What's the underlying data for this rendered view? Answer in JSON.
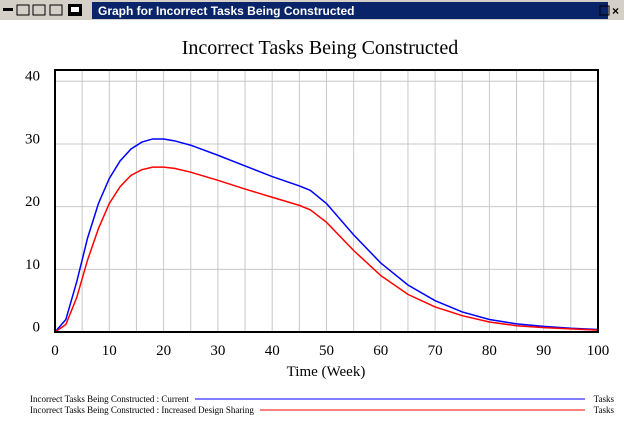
{
  "window_title": "Graph for Incorrect Tasks Being Constructed",
  "chart_data": {
    "type": "line",
    "title": "Incorrect Tasks Being Constructed",
    "xlabel": "Time (Week)",
    "x": [
      0,
      2,
      4,
      6,
      8,
      10,
      12,
      14,
      16,
      18,
      20,
      22,
      25,
      30,
      35,
      40,
      45,
      47,
      50,
      55,
      60,
      65,
      70,
      75,
      80,
      85,
      90,
      95,
      100
    ],
    "series": [
      {
        "name": "Incorrect Tasks Being Constructed : Current",
        "unit": "Tasks",
        "color": "#0000ff",
        "values": [
          0,
          2,
          8,
          15,
          20.5,
          24.5,
          27.3,
          29.2,
          30.3,
          30.8,
          30.8,
          30.5,
          29.8,
          28.2,
          26.5,
          24.8,
          23.3,
          22.6,
          20.5,
          15.5,
          11,
          7.5,
          5,
          3.2,
          2,
          1.3,
          0.9,
          0.6,
          0.4
        ]
      },
      {
        "name": "Incorrect Tasks Being Constructed : Increased Design Sharing",
        "unit": "Tasks",
        "color": "#ff0000",
        "values": [
          0,
          1.2,
          5.5,
          11.5,
          16.5,
          20.5,
          23.2,
          25,
          25.9,
          26.3,
          26.3,
          26.1,
          25.5,
          24.2,
          22.8,
          21.5,
          20.2,
          19.5,
          17.5,
          13,
          9,
          6,
          4,
          2.6,
          1.6,
          1,
          0.7,
          0.5,
          0.3
        ]
      }
    ],
    "xlim": [
      0,
      100
    ],
    "ylim": [
      0,
      41.8
    ],
    "xticks": [
      0,
      10,
      20,
      30,
      40,
      50,
      60,
      70,
      80,
      90,
      100
    ],
    "yticks": [
      0,
      10,
      20,
      30,
      40
    ],
    "xgrid": [
      5,
      10,
      15,
      20,
      25,
      30,
      35,
      40,
      45,
      50,
      55,
      60,
      65,
      70,
      75,
      80,
      85,
      90,
      95
    ],
    "grid": true
  }
}
